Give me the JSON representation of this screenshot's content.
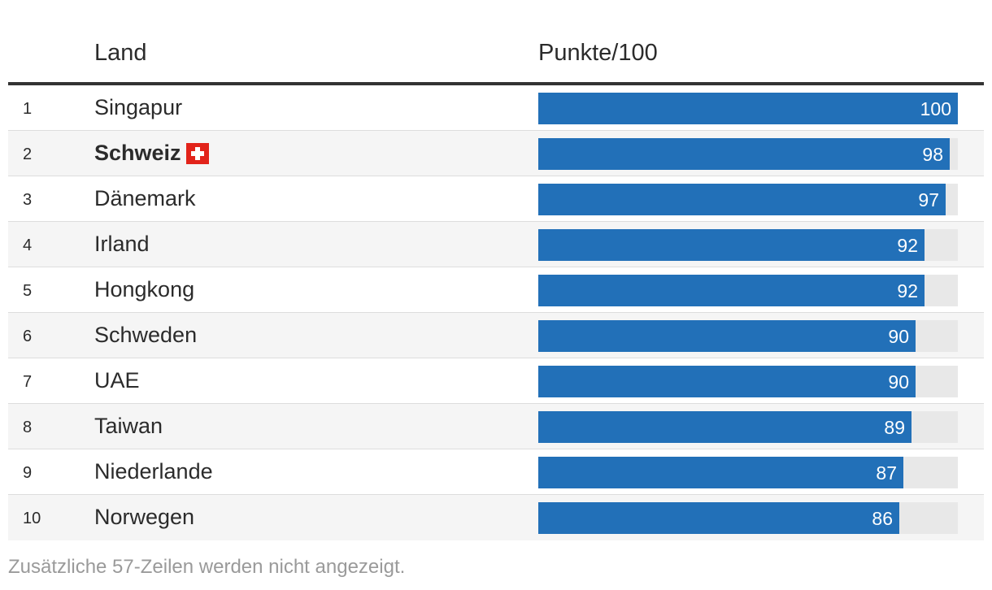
{
  "header": {
    "land": "Land",
    "punkte": "Punkte/100"
  },
  "footnote": "Zusätzliche 57-Zeilen werden nicht angezeigt.",
  "colors": {
    "bar": "#2270b8",
    "track": "#e8e8e8",
    "flag_red": "#e2231a"
  },
  "chart_data": {
    "type": "bar",
    "columns": [
      "Land",
      "Punkte/100"
    ],
    "max": 100,
    "rows": [
      {
        "rank": "1",
        "country": "Singapur",
        "value": 100
      },
      {
        "rank": "2",
        "country": "Schweiz",
        "value": 98,
        "highlight": true,
        "flag": "swiss-flag-icon"
      },
      {
        "rank": "3",
        "country": "Dänemark",
        "value": 97
      },
      {
        "rank": "4",
        "country": "Irland",
        "value": 92
      },
      {
        "rank": "5",
        "country": "Hongkong",
        "value": 92
      },
      {
        "rank": "6",
        "country": "Schweden",
        "value": 90
      },
      {
        "rank": "7",
        "country": "UAE",
        "value": 90
      },
      {
        "rank": "8",
        "country": "Taiwan",
        "value": 89
      },
      {
        "rank": "9",
        "country": "Niederlande",
        "value": 87
      },
      {
        "rank": "10",
        "country": "Norwegen",
        "value": 86
      }
    ]
  }
}
